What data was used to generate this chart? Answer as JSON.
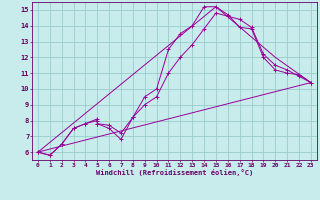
{
  "xlabel": "Windchill (Refroidissement éolien,°C)",
  "bg_color": "#c8ecec",
  "line_color": "#990099",
  "grid_color": "#99cccc",
  "axis_color": "#660066",
  "xlim": [
    -0.5,
    23.5
  ],
  "ylim": [
    5.5,
    15.5
  ],
  "xticks": [
    0,
    1,
    2,
    3,
    4,
    5,
    6,
    7,
    8,
    9,
    10,
    11,
    12,
    13,
    14,
    15,
    16,
    17,
    18,
    19,
    20,
    21,
    22,
    23
  ],
  "yticks": [
    6,
    7,
    8,
    9,
    10,
    11,
    12,
    13,
    14,
    15
  ],
  "lines": [
    {
      "x": [
        0,
        1,
        2,
        3,
        4,
        5,
        5,
        6,
        7,
        8,
        9,
        10,
        11,
        12,
        13,
        14,
        15,
        16,
        17,
        18,
        19,
        20,
        21,
        22,
        23
      ],
      "y": [
        6.0,
        5.8,
        6.5,
        7.5,
        7.8,
        8.0,
        7.8,
        7.5,
        6.8,
        8.2,
        9.5,
        10.0,
        12.5,
        13.5,
        14.0,
        15.2,
        15.2,
        14.7,
        13.9,
        13.8,
        12.0,
        11.2,
        11.0,
        10.9,
        10.4
      ],
      "markers": true
    },
    {
      "x": [
        0,
        1,
        2,
        3,
        4,
        5,
        5,
        6,
        7,
        8,
        9,
        10,
        11,
        12,
        13,
        14,
        15,
        16,
        17,
        18,
        19,
        20,
        21,
        22,
        23
      ],
      "y": [
        6.0,
        5.8,
        6.5,
        7.5,
        7.8,
        8.1,
        7.8,
        7.7,
        7.2,
        8.2,
        9.0,
        9.5,
        11.0,
        12.0,
        12.8,
        13.8,
        14.8,
        14.6,
        14.4,
        13.9,
        12.2,
        11.5,
        11.2,
        10.8,
        10.4
      ],
      "markers": true
    },
    {
      "x": [
        0,
        23
      ],
      "y": [
        6.0,
        10.4
      ],
      "markers": false
    },
    {
      "x": [
        0,
        15,
        20,
        23
      ],
      "y": [
        6.0,
        15.2,
        12.0,
        10.4
      ],
      "markers": false
    }
  ]
}
